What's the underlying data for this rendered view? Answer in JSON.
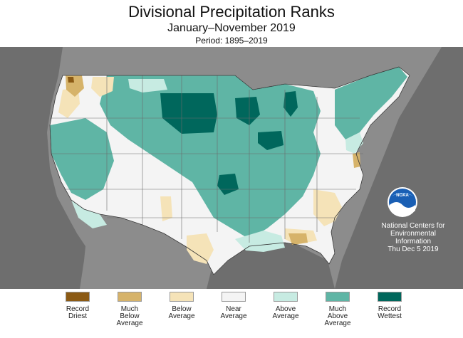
{
  "title": "Divisional Precipitation Ranks",
  "subtitle": "January–November 2019",
  "period": "Period: 1895–2019",
  "credit": {
    "line1": "National Centers for",
    "line2": "Environmental",
    "line3": "Information",
    "line4": "Thu Dec  5 2019"
  },
  "logo_text": "NOAA",
  "colors": {
    "background_land": "#8c8c8c",
    "water": "#6f6f6f",
    "record_driest": "#8b5a14",
    "much_below": "#d6b36a",
    "below": "#f5e3b8",
    "near": "#f4f4f4",
    "above": "#c7ebe2",
    "much_above": "#5fb5a5",
    "record_wettest": "#00675c"
  },
  "legend": [
    {
      "line1": "Record",
      "line2": "Driest",
      "line3": "",
      "color": "#8b5a14"
    },
    {
      "line1": "Much",
      "line2": "Below",
      "line3": "Average",
      "color": "#d6b36a"
    },
    {
      "line1": "Below",
      "line2": "Average",
      "line3": "",
      "color": "#f5e3b8"
    },
    {
      "line1": "Near",
      "line2": "Average",
      "line3": "",
      "color": "#f4f4f4"
    },
    {
      "line1": "Above",
      "line2": "Average",
      "line3": "",
      "color": "#c7ebe2"
    },
    {
      "line1": "Much",
      "line2": "Above",
      "line3": "Average",
      "color": "#5fb5a5"
    },
    {
      "line1": "Record",
      "line2": "Wettest",
      "line3": "",
      "color": "#00675c"
    }
  ]
}
